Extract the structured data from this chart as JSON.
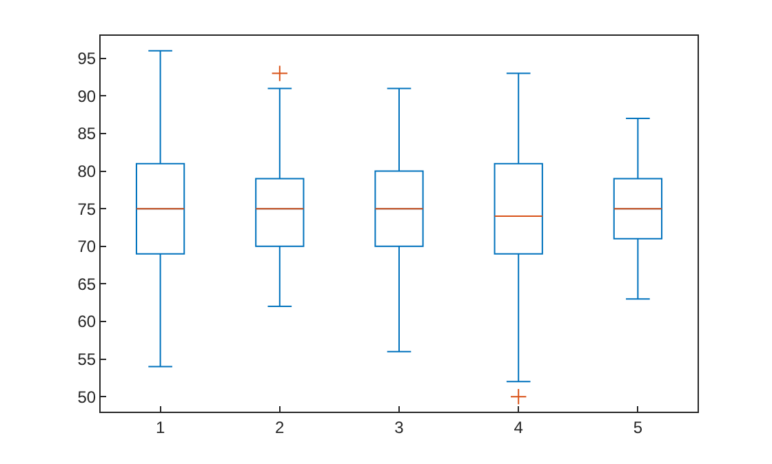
{
  "chart_data": {
    "type": "box",
    "categories": [
      "1",
      "2",
      "3",
      "4",
      "5"
    ],
    "boxes": [
      {
        "low": 54,
        "q1": 69,
        "median": 75,
        "q3": 81,
        "high": 96
      },
      {
        "low": 62,
        "q1": 70,
        "median": 75,
        "q3": 79,
        "high": 91,
        "outliers": [
          93
        ]
      },
      {
        "low": 56,
        "q1": 70,
        "median": 75,
        "q3": 80,
        "high": 91
      },
      {
        "low": 52,
        "q1": 69,
        "median": 74,
        "q3": 81,
        "high": 93,
        "outliers": [
          50
        ]
      },
      {
        "low": 63,
        "q1": 71,
        "median": 75,
        "q3": 79,
        "high": 87
      }
    ],
    "color": "#0072bd",
    "ylim": [
      48,
      98
    ],
    "yticks": [
      50,
      55,
      60,
      65,
      70,
      75,
      80,
      85,
      90,
      95
    ],
    "marker": "cross"
  }
}
